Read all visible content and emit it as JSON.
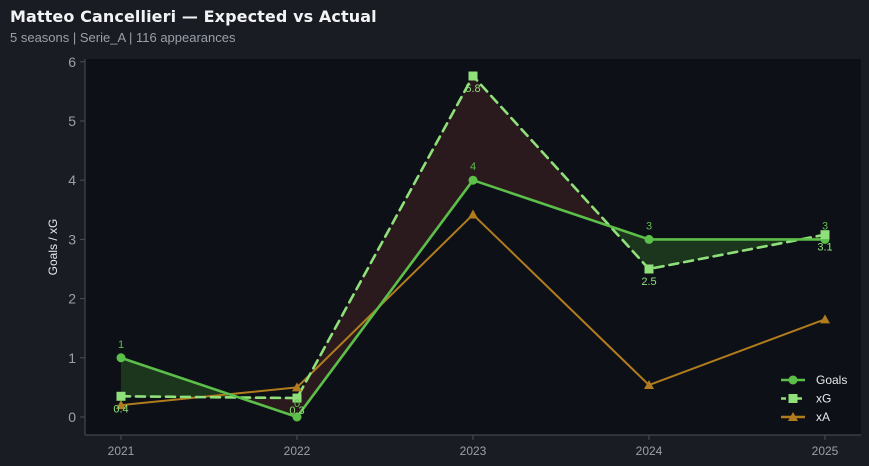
{
  "header": {
    "title": "Matteo Cancellieri — Expected vs Actual",
    "subtitle": "5 seasons | Serie_A | 116 appearances"
  },
  "colors": {
    "goals": "#5cbf4a",
    "xg": "#8fe07a",
    "xa": "#b07c1e",
    "over_fill": "#1e3a1e",
    "under_fill": "#2f1c1e",
    "plot_bg": "#0d1016",
    "page_bg": "#191c22"
  },
  "chart_data": {
    "type": "line",
    "x": [
      "2021",
      "2022",
      "2023",
      "2024",
      "2025"
    ],
    "ylabel": "Goals / xG",
    "xlabel": "",
    "ylim": [
      -0.3,
      6.05
    ],
    "yticks": [
      0,
      1,
      2,
      3,
      4,
      5,
      6
    ],
    "grid": false,
    "legend_position": "bottom-right",
    "series": [
      {
        "name": "Goals",
        "values": [
          1,
          0,
          4,
          3,
          3
        ],
        "labels": [
          "1",
          "0",
          "4",
          "3",
          "3"
        ],
        "marker": "circle",
        "style": "solid"
      },
      {
        "name": "xG",
        "values": [
          0.35,
          0.32,
          5.76,
          2.5,
          3.08
        ],
        "labels": [
          "0.4",
          "0.3",
          "5.8",
          "2.5",
          "3.1"
        ],
        "marker": "square",
        "style": "dashed"
      },
      {
        "name": "xA",
        "values": [
          0.2,
          0.5,
          3.42,
          0.54,
          1.65
        ],
        "marker": "triangle",
        "style": "solid"
      }
    ]
  }
}
